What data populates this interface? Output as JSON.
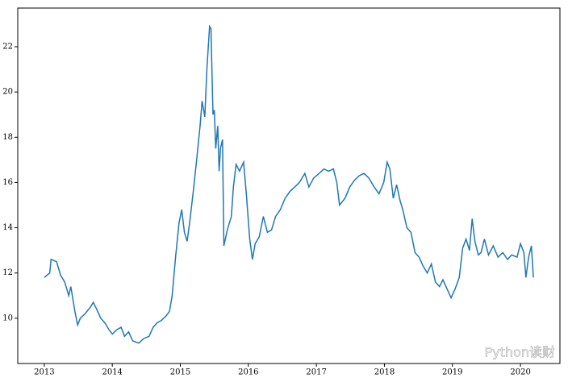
{
  "chart_data": {
    "type": "line",
    "x": [
      2013.0,
      2013.08,
      2013.1,
      2013.18,
      2013.24,
      2013.3,
      2013.36,
      2013.39,
      2013.45,
      2013.49,
      2013.53,
      2013.6,
      2013.68,
      2013.72,
      2013.77,
      2013.83,
      2013.89,
      2013.95,
      2014.0,
      2014.07,
      2014.13,
      2014.18,
      2014.24,
      2014.3,
      2014.39,
      2014.46,
      2014.54,
      2014.6,
      2014.66,
      2014.72,
      2014.79,
      2014.84,
      2014.88,
      2014.93,
      2014.98,
      2015.02,
      2015.06,
      2015.1,
      2015.14,
      2015.19,
      2015.24,
      2015.29,
      2015.32,
      2015.36,
      2015.39,
      2015.43,
      2015.45,
      2015.48,
      2015.5,
      2015.52,
      2015.55,
      2015.57,
      2015.59,
      2015.62,
      2015.64,
      2015.69,
      2015.75,
      2015.78,
      2015.82,
      2015.87,
      2015.93,
      2015.97,
      2016.02,
      2016.06,
      2016.1,
      2016.16,
      2016.22,
      2016.28,
      2016.34,
      2016.4,
      2016.47,
      2016.54,
      2016.61,
      2016.68,
      2016.75,
      2016.83,
      2016.89,
      2016.96,
      2017.04,
      2017.11,
      2017.18,
      2017.25,
      2017.3,
      2017.34,
      2017.42,
      2017.49,
      2017.56,
      2017.63,
      2017.7,
      2017.77,
      2017.85,
      2017.92,
      2017.99,
      2018.04,
      2018.08,
      2018.13,
      2018.18,
      2018.23,
      2018.27,
      2018.33,
      2018.39,
      2018.45,
      2018.51,
      2018.57,
      2018.63,
      2018.69,
      2018.75,
      2018.81,
      2018.86,
      2018.92,
      2018.98,
      2019.04,
      2019.1,
      2019.15,
      2019.2,
      2019.25,
      2019.29,
      2019.33,
      2019.38,
      2019.42,
      2019.47,
      2019.53,
      2019.6,
      2019.67,
      2019.74,
      2019.81,
      2019.87,
      2019.95,
      2020.0,
      2020.05,
      2020.08,
      2020.12,
      2020.16,
      2020.19
    ],
    "series": [
      {
        "color": "#1f77b4",
        "values": [
          11.8,
          12.0,
          12.6,
          12.5,
          11.9,
          11.6,
          11.0,
          11.4,
          10.3,
          9.7,
          10.0,
          10.2,
          10.5,
          10.7,
          10.4,
          10.0,
          9.8,
          9.5,
          9.3,
          9.5,
          9.6,
          9.2,
          9.4,
          9.0,
          8.9,
          9.1,
          9.2,
          9.6,
          9.8,
          9.9,
          10.1,
          10.3,
          11.0,
          12.7,
          14.2,
          14.8,
          13.8,
          13.4,
          14.3,
          15.6,
          17.0,
          18.5,
          19.6,
          18.9,
          21.0,
          22.9,
          22.8,
          19.0,
          19.2,
          17.5,
          18.5,
          16.5,
          17.5,
          17.9,
          13.2,
          13.9,
          14.5,
          15.8,
          16.8,
          16.5,
          16.9,
          15.5,
          13.5,
          12.6,
          13.3,
          13.6,
          14.5,
          13.8,
          13.9,
          14.5,
          14.8,
          15.3,
          15.6,
          15.8,
          16.0,
          16.4,
          15.8,
          16.2,
          16.4,
          16.6,
          16.5,
          16.6,
          16.0,
          15.0,
          15.3,
          15.8,
          16.1,
          16.3,
          16.4,
          16.2,
          15.8,
          15.5,
          16.0,
          16.9,
          16.6,
          15.3,
          15.9,
          15.2,
          14.8,
          14.0,
          13.8,
          12.9,
          12.7,
          12.3,
          12.0,
          12.4,
          11.6,
          11.4,
          11.7,
          11.3,
          10.9,
          11.3,
          11.8,
          13.1,
          13.5,
          13.0,
          14.4,
          13.4,
          12.8,
          12.9,
          13.5,
          12.8,
          13.2,
          12.7,
          12.9,
          12.6,
          12.8,
          12.7,
          13.3,
          12.9,
          11.8,
          12.7,
          13.2,
          11.8
        ]
      }
    ],
    "xlim": [
      2012.61,
      2020.58
    ],
    "xticks": [
      2013,
      2014,
      2015,
      2016,
      2017,
      2018,
      2019,
      2020
    ],
    "ylim": [
      8.0,
      23.71
    ],
    "yticks": [
      10,
      12,
      14,
      16,
      18,
      20,
      22
    ],
    "watermark": "Python读财"
  }
}
